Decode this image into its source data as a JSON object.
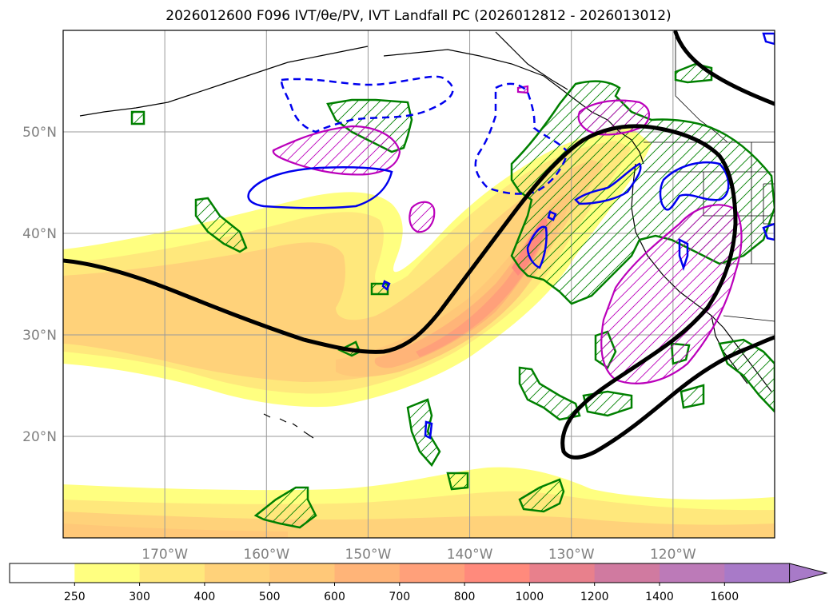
{
  "title": "2026012600 F096 IVT/θe/PV, IVT Landfall PC (2026012812 - 2026013012)",
  "chart_data": {
    "type": "map",
    "title": "2026012600 F096 IVT/θe/PV, IVT Landfall PC (2026012812 - 2026013012)",
    "lon_range": [
      -180,
      -110
    ],
    "lat_range": [
      10,
      60
    ],
    "lon_ticks": [
      "170°W",
      "160°W",
      "150°W",
      "140°W",
      "130°W",
      "120°W"
    ],
    "lon_tick_values": [
      -170,
      -160,
      -150,
      -140,
      -130,
      -120
    ],
    "lat_ticks": [
      "20°N",
      "30°N",
      "40°N",
      "50°N"
    ],
    "lat_tick_values": [
      20,
      30,
      40,
      50
    ],
    "grid": true,
    "colorbar": {
      "levels": [
        "250",
        "300",
        "400",
        "500",
        "600",
        "700",
        "800",
        "1000",
        "1200",
        "1400",
        "1600"
      ],
      "colors": [
        "#ffffff",
        "#ffff80",
        "#ffe87c",
        "#ffd27a",
        "#ffc878",
        "#ffb478",
        "#ffa07a",
        "#ff8a7c",
        "#e8808c",
        "#d07aa0",
        "#bc7ab8",
        "#a87ac8"
      ],
      "extend": "max"
    },
    "colors": {
      "theta_contour": "#000000",
      "pv_positive": "#0000ee",
      "pv_hatch": "#bb00bb",
      "landfall_pc": "#008000"
    }
  }
}
